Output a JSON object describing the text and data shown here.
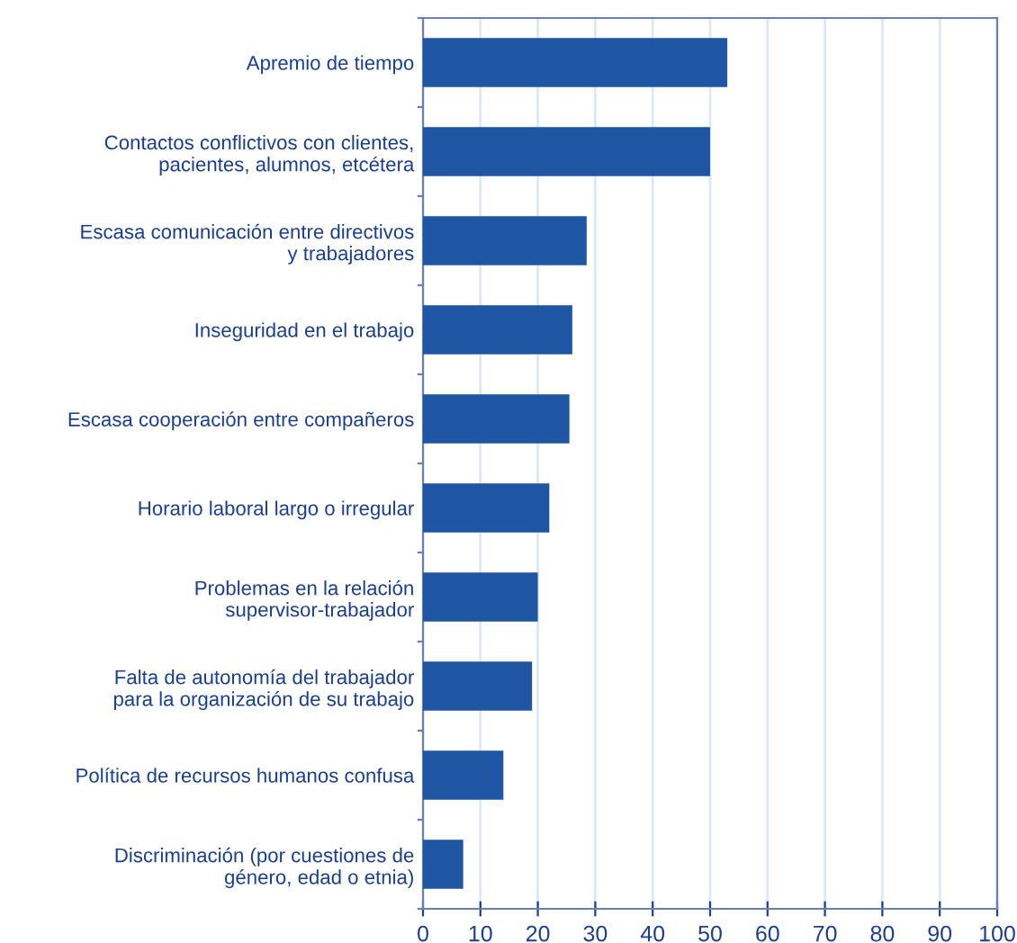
{
  "chart_data": {
    "type": "bar",
    "orientation": "horizontal",
    "categories": [
      "Apremio de tiempo",
      "Contactos conflictivos con clientes,\npacientes, alumnos, etcétera",
      "Escasa comunicación entre directivos\ny trabajadores",
      "Inseguridad en el trabajo",
      "Escasa cooperación entre compañeros",
      "Horario laboral largo o irregular",
      "Problemas en la relación\nsupervisor-trabajador",
      "Falta de autonomía del trabajador\npara la organización de su trabajo",
      "Política de recursos humanos confusa",
      "Discriminación (por cuestiones de\ngénero, edad o etnia)"
    ],
    "values": [
      53,
      50,
      28.5,
      26,
      25.5,
      22,
      20,
      19,
      14,
      7
    ],
    "color": "#1f56a3",
    "xlim": [
      0,
      100
    ],
    "xticks": [
      0,
      10,
      20,
      30,
      40,
      50,
      60,
      70,
      80,
      90,
      100
    ],
    "grid": "x"
  }
}
